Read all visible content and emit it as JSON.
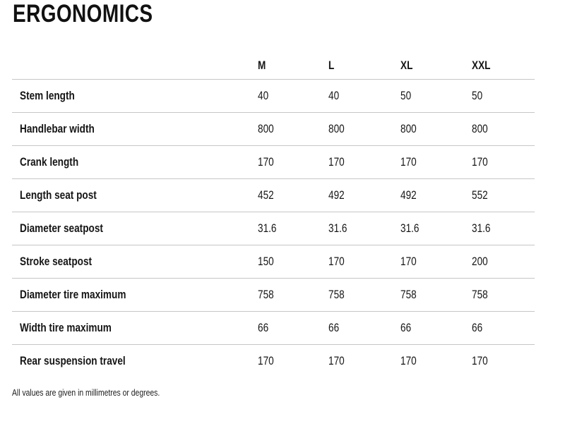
{
  "page": {
    "title": "ERGONOMICS",
    "footnote": "All values are given in millimetres or degrees."
  },
  "colors": {
    "background": "#ffffff",
    "text": "#161616",
    "divider": "#c6c6c6"
  },
  "chart_data": {
    "type": "table",
    "title": "ERGONOMICS",
    "columns": [
      "",
      "M",
      "L",
      "XL",
      "XXL"
    ],
    "rows": [
      {
        "label": "Stem length",
        "values": [
          "40",
          "40",
          "50",
          "50"
        ]
      },
      {
        "label": "Handlebar width",
        "values": [
          "800",
          "800",
          "800",
          "800"
        ]
      },
      {
        "label": "Crank length",
        "values": [
          "170",
          "170",
          "170",
          "170"
        ]
      },
      {
        "label": "Length seat post",
        "values": [
          "452",
          "492",
          "492",
          "552"
        ]
      },
      {
        "label": "Diameter seatpost",
        "values": [
          "31.6",
          "31.6",
          "31.6",
          "31.6"
        ]
      },
      {
        "label": "Stroke seatpost",
        "values": [
          "150",
          "170",
          "170",
          "200"
        ]
      },
      {
        "label": "Diameter tire maximum",
        "values": [
          "758",
          "758",
          "758",
          "758"
        ]
      },
      {
        "label": "Width tire maximum",
        "values": [
          "66",
          "66",
          "66",
          "66"
        ]
      },
      {
        "label": "Rear suspension travel",
        "values": [
          "170",
          "170",
          "170",
          "170"
        ]
      }
    ],
    "note": "All values are given in millimetres or degrees.",
    "layout": {
      "dividers": "horizontal-only",
      "last_row_divider": false
    }
  }
}
